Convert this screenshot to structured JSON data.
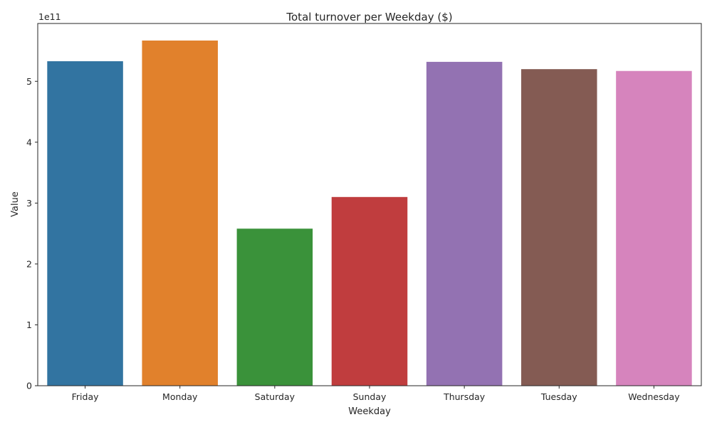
{
  "chart_data": {
    "type": "bar",
    "title": "Total turnover per Weekday ($)",
    "xlabel": "Weekday",
    "ylabel": "Value",
    "offset_text": "1e11",
    "categories": [
      "Friday",
      "Monday",
      "Saturday",
      "Sunday",
      "Thursday",
      "Tuesday",
      "Wednesday"
    ],
    "values": [
      533000000000,
      567000000000,
      258000000000,
      310000000000,
      532000000000,
      520000000000,
      517000000000
    ],
    "colors": [
      "#3274a1",
      "#e1812c",
      "#3a923a",
      "#c03d3e",
      "#9372b2",
      "#845b53",
      "#d684bd"
    ],
    "ylim": [
      0,
      595000000000
    ],
    "yticks": [
      0,
      100000000000,
      200000000000,
      300000000000,
      400000000000,
      500000000000
    ],
    "ytick_labels": [
      "0",
      "1",
      "2",
      "3",
      "4",
      "5"
    ],
    "grid": false,
    "legend": "none"
  }
}
